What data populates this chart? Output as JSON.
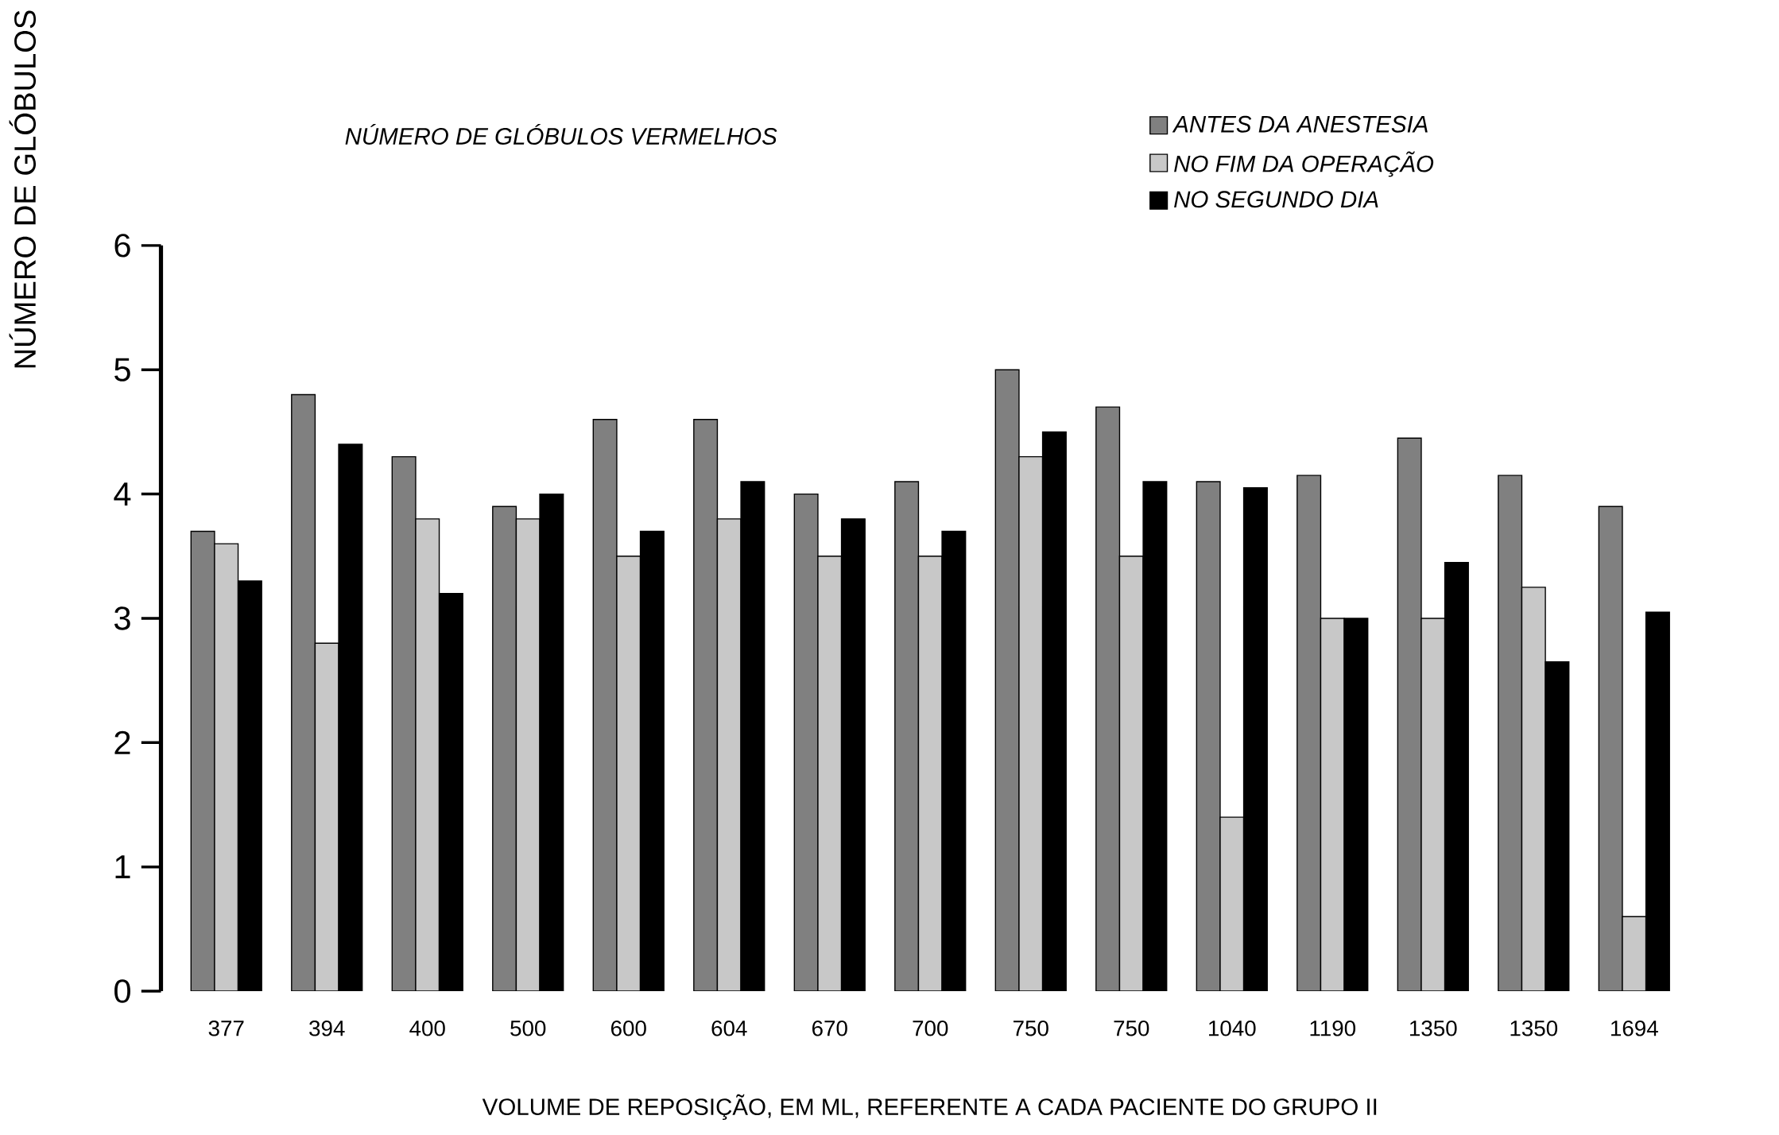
{
  "chart_data": {
    "type": "bar",
    "title": "NÚMERO DE GLÓBULOS VERMELHOS",
    "ylabel": "NÚMERO DE GLÓBULOS",
    "xlabel": "VOLUME DE REPOSIÇÃO, EM ML, REFERENTE A CADA PACIENTE DO GRUPO II",
    "categories": [
      "377",
      "394",
      "400",
      "500",
      "600",
      "604",
      "670",
      "700",
      "750",
      "750",
      "1040",
      "1190",
      "1350",
      "1350",
      "1694"
    ],
    "series": [
      {
        "name": "ANTES DA ANESTESIA",
        "color": "#808080",
        "values": [
          3.7,
          4.8,
          4.3,
          3.9,
          4.6,
          4.6,
          4.0,
          4.1,
          5.0,
          4.7,
          4.1,
          4.15,
          4.45,
          4.15,
          3.9
        ]
      },
      {
        "name": "NO FIM DA OPERAÇÃO",
        "color": "#c8c8c8",
        "values": [
          3.6,
          2.8,
          3.8,
          3.8,
          3.5,
          3.8,
          3.5,
          3.5,
          4.3,
          3.5,
          1.4,
          3.0,
          3.0,
          3.25,
          0.6
        ]
      },
      {
        "name": "NO SEGUNDO DIA",
        "color": "#000000",
        "values": [
          3.3,
          4.4,
          3.2,
          4.0,
          3.7,
          4.1,
          3.8,
          3.7,
          4.5,
          4.1,
          4.05,
          3.0,
          3.45,
          2.65,
          3.05
        ]
      }
    ],
    "ylim": [
      0,
      6
    ],
    "yticks": [
      0,
      1,
      2,
      3,
      4,
      5,
      6
    ],
    "legend": "top right"
  }
}
